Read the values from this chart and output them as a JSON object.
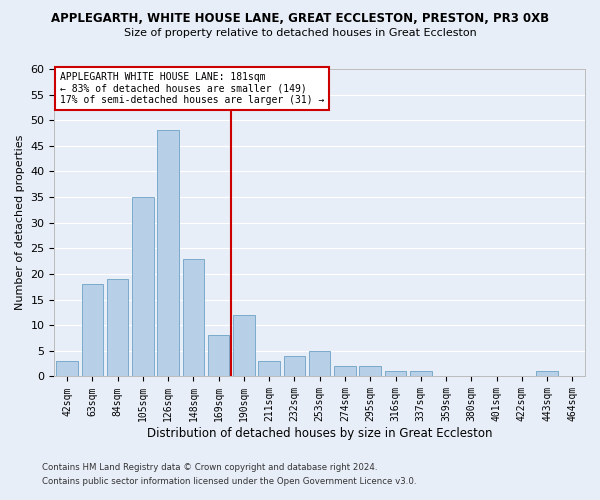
{
  "title": "APPLEGARTH, WHITE HOUSE LANE, GREAT ECCLESTON, PRESTON, PR3 0XB",
  "subtitle": "Size of property relative to detached houses in Great Eccleston",
  "xlabel": "Distribution of detached houses by size in Great Eccleston",
  "ylabel": "Number of detached properties",
  "categories": [
    "42sqm",
    "63sqm",
    "84sqm",
    "105sqm",
    "126sqm",
    "148sqm",
    "169sqm",
    "190sqm",
    "211sqm",
    "232sqm",
    "253sqm",
    "274sqm",
    "295sqm",
    "316sqm",
    "337sqm",
    "359sqm",
    "380sqm",
    "401sqm",
    "422sqm",
    "443sqm",
    "464sqm"
  ],
  "values": [
    3,
    18,
    19,
    35,
    48,
    23,
    8,
    12,
    3,
    4,
    5,
    2,
    2,
    1,
    1,
    0,
    0,
    0,
    0,
    1,
    0
  ],
  "bar_color": "#b8cfe8",
  "bar_edge_color": "#7aaacb",
  "background_color": "#e8eef8",
  "grid_color": "#ffffff",
  "vline_x": 6.5,
  "vline_color": "#cc0000",
  "annotation_text": "APPLEGARTH WHITE HOUSE LANE: 181sqm\n← 83% of detached houses are smaller (149)\n17% of semi-detached houses are larger (31) →",
  "annotation_box_color": "#ffffff",
  "annotation_box_edge_color": "#cc0000",
  "footer1": "Contains HM Land Registry data © Crown copyright and database right 2024.",
  "footer2": "Contains public sector information licensed under the Open Government Licence v3.0.",
  "ylim": [
    0,
    60
  ],
  "yticks": [
    0,
    5,
    10,
    15,
    20,
    25,
    30,
    35,
    40,
    45,
    50,
    55,
    60
  ]
}
